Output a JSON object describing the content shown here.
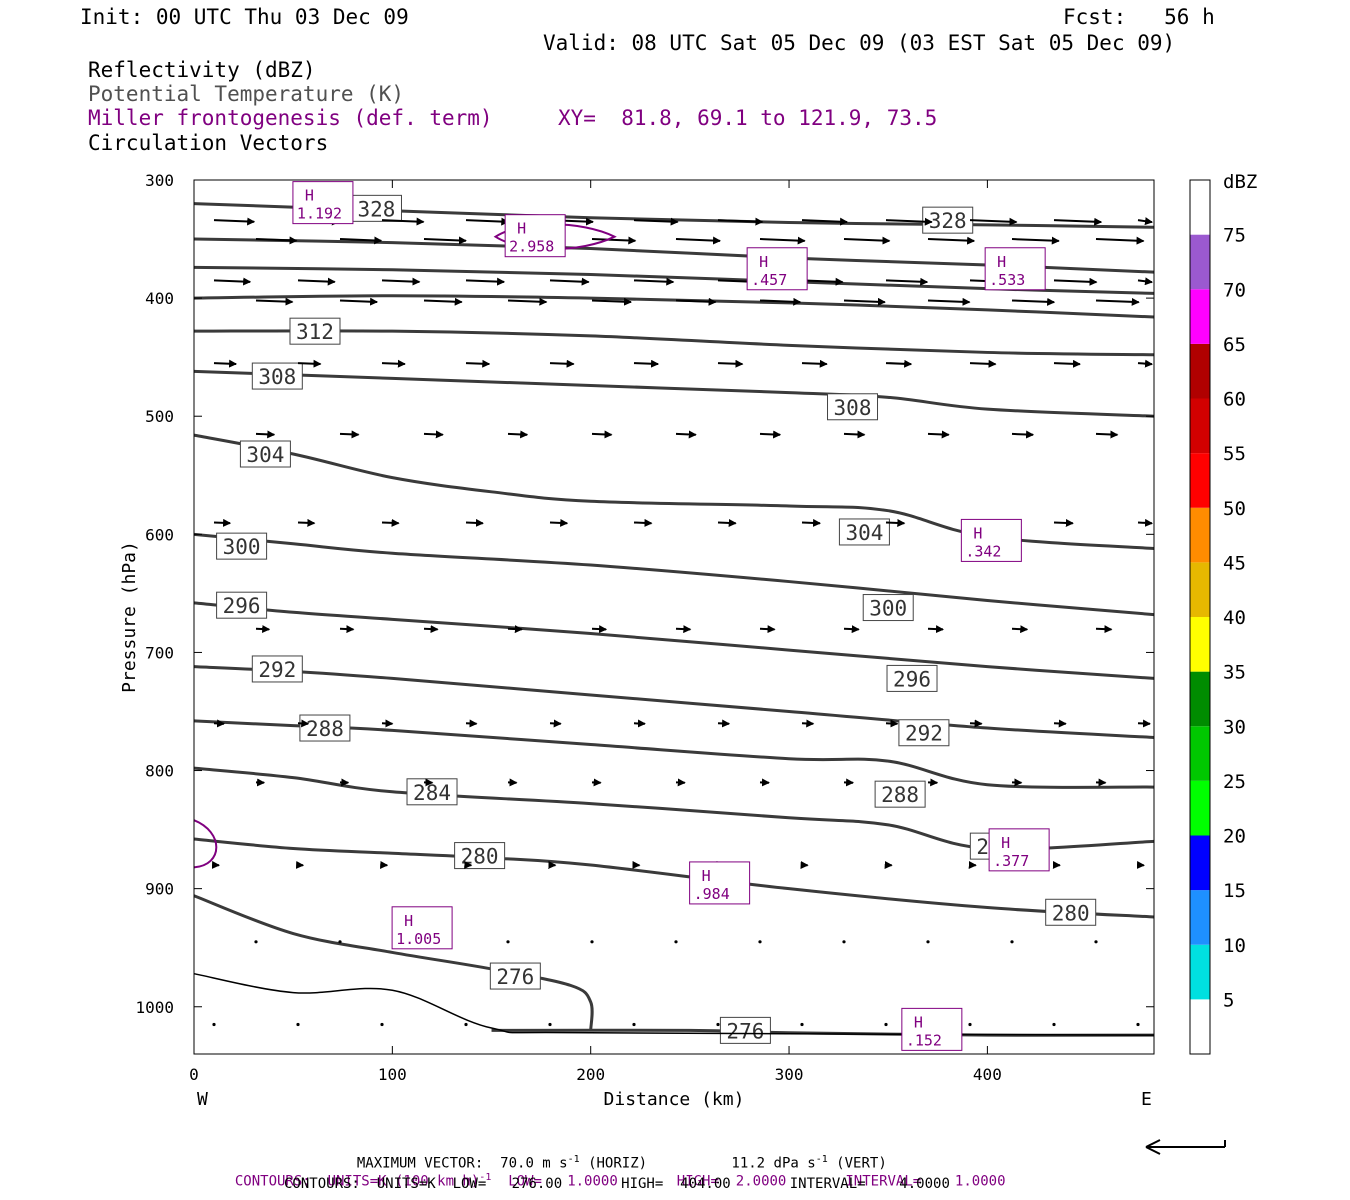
{
  "header": {
    "init": "Init: 00 UTC Thu 03 Dec 09",
    "fcst": "Fcst:   56 h",
    "valid": "Valid: 08 UTC Sat 05 Dec 09 (03 EST Sat 05 Dec 09)",
    "field1": "Reflectivity (dBZ)",
    "field2": "Potential Temperature (K)",
    "field3": "Miller frontogenesis (def. term)",
    "xy": "XY=  81.8, 69.1 to 121.9, 73.5",
    "field4": "Circulation Vectors"
  },
  "colorbar": {
    "title": "dBZ",
    "labels": [
      "5",
      "10",
      "15",
      "20",
      "25",
      "30",
      "35",
      "40",
      "45",
      "50",
      "55",
      "60",
      "65",
      "70",
      "75"
    ],
    "colors": [
      "#ffffff",
      "#00e0e0",
      "#1e90ff",
      "#0000ff",
      "#00ff00",
      "#00c800",
      "#008c00",
      "#ffff00",
      "#e6b800",
      "#ff8c00",
      "#ff0000",
      "#d20000",
      "#b00000",
      "#ff00ff",
      "#9b59d0",
      "#ffffff"
    ]
  },
  "footer": {
    "max_vector_label": "MAXIMUM VECTOR:",
    "max_horiz_value": "70.0 m s",
    "max_horiz_unit": "(HORIZ)",
    "max_vert_value": "11.2 dPa s",
    "max_vert_unit": "(VERT)",
    "sup": "-1",
    "contours1_a": "CONTOURS:  UNITS=K (100 km h)",
    "contours1_b": "  LOW=   1.0000       HIGH=  2.0000       INTERVAL=    1.0000",
    "contours2": "CONTOURS:  UNITS=K  LOW=   276.00       HIGH=  404.00       INTERVAL=    4.0000"
  },
  "chart_data": {
    "type": "contour",
    "xlabel": "Distance (km)",
    "ylabel": "Pressure (hPa)",
    "xlim": [
      0,
      484
    ],
    "ylim": [
      1040,
      300
    ],
    "xticks": [
      0,
      100,
      200,
      300,
      400
    ],
    "yticks": [
      300,
      400,
      500,
      600,
      700,
      800,
      900,
      1000
    ],
    "left_label": "W",
    "right_label": "E",
    "theta_contours": [
      {
        "label": "328",
        "points": [
          [
            0,
            320
          ],
          [
            100,
            326
          ],
          [
            200,
            332
          ],
          [
            300,
            336
          ],
          [
            400,
            338
          ],
          [
            484,
            340
          ]
        ],
        "label_pos": [
          [
            92,
            324
          ],
          [
            380,
            334
          ]
        ]
      },
      {
        "label": "",
        "points": [
          [
            0,
            350
          ],
          [
            100,
            353
          ],
          [
            200,
            358
          ],
          [
            300,
            366
          ],
          [
            400,
            372
          ],
          [
            484,
            378
          ]
        ],
        "label_pos": []
      },
      {
        "label": "",
        "points": [
          [
            0,
            374
          ],
          [
            100,
            376
          ],
          [
            200,
            380
          ],
          [
            300,
            386
          ],
          [
            400,
            392
          ],
          [
            484,
            396
          ]
        ],
        "label_pos": []
      },
      {
        "label": "",
        "points": [
          [
            0,
            400
          ],
          [
            100,
            398
          ],
          [
            200,
            400
          ],
          [
            300,
            404
          ],
          [
            400,
            410
          ],
          [
            484,
            416
          ]
        ],
        "label_pos": []
      },
      {
        "label": "312",
        "points": [
          [
            0,
            428
          ],
          [
            100,
            428
          ],
          [
            200,
            432
          ],
          [
            300,
            440
          ],
          [
            400,
            446
          ],
          [
            484,
            448
          ]
        ],
        "label_pos": [
          [
            61,
            428
          ]
        ]
      },
      {
        "label": "308",
        "points": [
          [
            0,
            462
          ],
          [
            100,
            468
          ],
          [
            200,
            474
          ],
          [
            300,
            480
          ],
          [
            350,
            484
          ],
          [
            400,
            494
          ],
          [
            484,
            500
          ]
        ],
        "label_pos": [
          [
            42,
            466
          ],
          [
            332,
            492
          ]
        ]
      },
      {
        "label": "304",
        "points": [
          [
            0,
            516
          ],
          [
            50,
            532
          ],
          [
            100,
            552
          ],
          [
            150,
            564
          ],
          [
            200,
            572
          ],
          [
            300,
            576
          ],
          [
            350,
            580
          ],
          [
            400,
            602
          ],
          [
            484,
            612
          ]
        ],
        "label_pos": [
          [
            36,
            532
          ],
          [
            338,
            598
          ]
        ]
      },
      {
        "label": "300",
        "points": [
          [
            0,
            600
          ],
          [
            50,
            608
          ],
          [
            100,
            616
          ],
          [
            200,
            626
          ],
          [
            300,
            640
          ],
          [
            400,
            656
          ],
          [
            484,
            668
          ]
        ],
        "label_pos": [
          [
            24,
            610
          ],
          [
            350,
            662
          ]
        ]
      },
      {
        "label": "296",
        "points": [
          [
            0,
            658
          ],
          [
            50,
            666
          ],
          [
            100,
            672
          ],
          [
            200,
            684
          ],
          [
            300,
            698
          ],
          [
            400,
            712
          ],
          [
            484,
            722
          ]
        ],
        "label_pos": [
          [
            24,
            660
          ],
          [
            362,
            722
          ]
        ]
      },
      {
        "label": "292",
        "points": [
          [
            0,
            712
          ],
          [
            50,
            716
          ],
          [
            100,
            722
          ],
          [
            200,
            736
          ],
          [
            300,
            750
          ],
          [
            400,
            764
          ],
          [
            484,
            772
          ]
        ],
        "label_pos": [
          [
            42,
            714
          ],
          [
            368,
            768
          ]
        ]
      },
      {
        "label": "288",
        "points": [
          [
            0,
            758
          ],
          [
            50,
            762
          ],
          [
            100,
            766
          ],
          [
            200,
            778
          ],
          [
            300,
            790
          ],
          [
            350,
            792
          ],
          [
            400,
            812
          ],
          [
            484,
            814
          ]
        ],
        "label_pos": [
          [
            66,
            764
          ],
          [
            356,
            820
          ]
        ]
      },
      {
        "label": "284",
        "points": [
          [
            0,
            798
          ],
          [
            50,
            806
          ],
          [
            100,
            818
          ],
          [
            200,
            828
          ],
          [
            300,
            840
          ],
          [
            350,
            846
          ],
          [
            400,
            866
          ],
          [
            484,
            860
          ]
        ],
        "label_pos": [
          [
            120,
            818
          ],
          [
            404,
            864
          ]
        ]
      },
      {
        "label": "280",
        "points": [
          [
            0,
            858
          ],
          [
            50,
            866
          ],
          [
            100,
            870
          ],
          [
            150,
            874
          ],
          [
            200,
            880
          ],
          [
            300,
            900
          ],
          [
            400,
            916
          ],
          [
            484,
            924
          ]
        ],
        "label_pos": [
          [
            144,
            872
          ],
          [
            442,
            920
          ]
        ]
      },
      {
        "label": "276",
        "points": [
          [
            0,
            906
          ],
          [
            50,
            938
          ],
          [
            100,
            954
          ],
          [
            150,
            968
          ],
          [
            190,
            982
          ],
          [
            200,
            996
          ],
          [
            200,
            1020
          ]
        ],
        "label_pos": [
          [
            162,
            974
          ]
        ]
      },
      {
        "label": "276",
        "points": [
          [
            150,
            1020
          ],
          [
            250,
            1020
          ],
          [
            300,
            1022
          ],
          [
            400,
            1024
          ],
          [
            484,
            1024
          ]
        ],
        "label_pos": [
          [
            278,
            1020
          ]
        ]
      }
    ],
    "frontogenesis_highs": [
      {
        "label": "H",
        "value": "1.192",
        "x": 65,
        "p": 320
      },
      {
        "label": "H",
        "value": "2.958",
        "x": 172,
        "p": 348
      },
      {
        "label": "H",
        "value": ".457",
        "x": 294,
        "p": 376
      },
      {
        "label": "H",
        "value": ".533",
        "x": 414,
        "p": 376
      },
      {
        "label": "H",
        "value": ".342",
        "x": 402,
        "p": 606
      },
      {
        "label": "H",
        "value": ".377",
        "x": 416,
        "p": 868
      },
      {
        "label": "H",
        "value": ".984",
        "x": 265,
        "p": 896
      },
      {
        "label": "H",
        "value": "1.005",
        "x": 115,
        "p": 934
      },
      {
        "label": "H",
        "value": ".152",
        "x": 372,
        "p": 1020
      }
    ],
    "vector_rows": [
      {
        "p": 334,
        "u": 40
      },
      {
        "p": 350,
        "u": 40
      },
      {
        "p": 385,
        "u": 36
      },
      {
        "p": 402,
        "u": 36
      },
      {
        "p": 455,
        "u": 22
      },
      {
        "p": 515,
        "u": 18
      },
      {
        "p": 590,
        "u": 16
      },
      {
        "p": 680,
        "u": 13
      },
      {
        "p": 760,
        "u": 10
      },
      {
        "p": 810,
        "u": 8
      },
      {
        "p": 880,
        "u": 5
      },
      {
        "p": 945,
        "u": 3
      },
      {
        "p": 1015,
        "u": 2
      }
    ]
  }
}
